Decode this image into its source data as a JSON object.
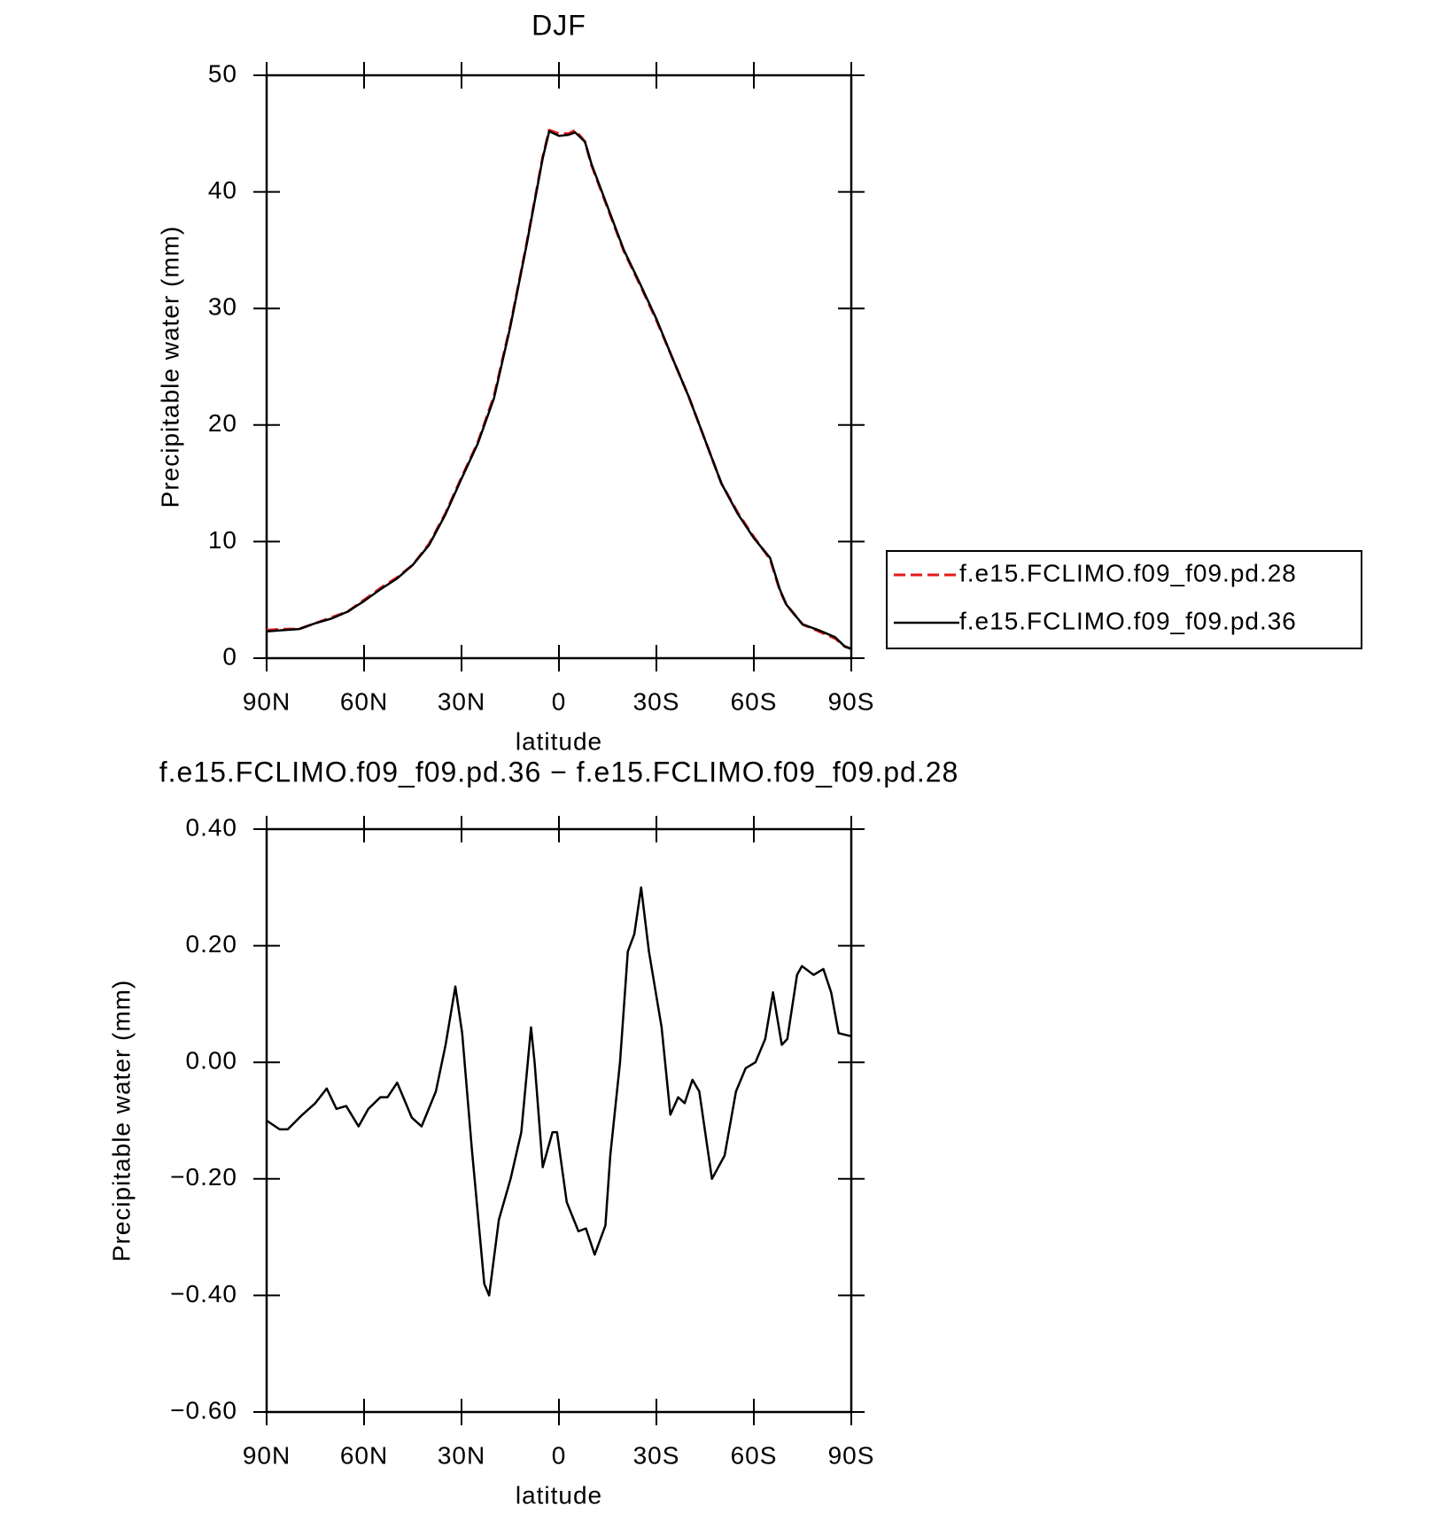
{
  "chart_data": [
    {
      "type": "line",
      "title": "DJF",
      "xlabel": "latitude",
      "ylabel": "Precipitable water (mm)",
      "x": [
        90,
        85,
        80,
        75,
        70,
        65,
        60,
        55,
        50,
        45,
        40,
        35,
        30,
        25,
        20,
        15,
        10,
        5,
        3,
        0,
        -3,
        -5,
        -8,
        -10,
        -15,
        -20,
        -25,
        -30,
        -35,
        -40,
        -45,
        -50,
        -55,
        -60,
        -65,
        -68,
        -70,
        -75,
        -80,
        -85,
        -88,
        -90
      ],
      "series": [
        {
          "name": "f.e15.FCLIMO.f09_f09.pd.28",
          "color": "#e41a1c",
          "dash": true,
          "values": [
            2.4,
            2.5,
            2.5,
            3.0,
            3.5,
            4.0,
            5.0,
            6.0,
            6.9,
            8.0,
            9.8,
            12.4,
            15.5,
            18.5,
            22.5,
            28.5,
            35.5,
            43.0,
            45.3,
            45.0,
            45.0,
            45.3,
            44.3,
            42.3,
            38.6,
            34.9,
            32.0,
            29.0,
            25.7,
            22.4,
            18.7,
            15.0,
            12.5,
            10.4,
            8.5,
            5.8,
            4.6,
            2.9,
            2.3,
            1.7,
            1.0,
            0.8
          ]
        },
        {
          "name": "f.e15.FCLIMO.f09_f09.pd.36",
          "color": "#000000",
          "dash": false,
          "values": [
            2.3,
            2.4,
            2.5,
            3.0,
            3.4,
            4.0,
            4.9,
            5.9,
            6.8,
            8.0,
            9.7,
            12.3,
            15.4,
            18.4,
            22.3,
            28.4,
            35.4,
            42.9,
            45.2,
            44.8,
            44.9,
            45.1,
            44.3,
            42.4,
            38.7,
            35.0,
            32.1,
            29.1,
            25.7,
            22.4,
            18.7,
            15.0,
            12.4,
            10.3,
            8.6,
            5.9,
            4.6,
            2.9,
            2.4,
            1.8,
            1.0,
            0.8
          ]
        }
      ],
      "xlim": [
        90,
        -90
      ],
      "xticks": [
        {
          "value": 90,
          "label": "90N"
        },
        {
          "value": 60,
          "label": "60N"
        },
        {
          "value": 30,
          "label": "30N"
        },
        0,
        {
          "value": -30,
          "label": "30S"
        },
        {
          "value": -60,
          "label": "60S"
        },
        {
          "value": -90,
          "label": "90S"
        }
      ],
      "ylim": [
        0,
        50
      ],
      "yticks": [
        0,
        10,
        20,
        30,
        40,
        50
      ],
      "legend": "right"
    },
    {
      "type": "line",
      "title": "f.e15.FCLIMO.f09_f09.pd.36 − f.e15.FCLIMO.f09_f09.pd.28",
      "xlabel": "latitude",
      "ylabel": "Precipitable water (mm)",
      "x": [
        90,
        86,
        83.5,
        79,
        75,
        71.5,
        68.5,
        65.5,
        61.7,
        58.7,
        55,
        52.8,
        49.8,
        45.3,
        42.3,
        37.9,
        34.9,
        31.9,
        29.8,
        26.8,
        23,
        21.5,
        18.5,
        14.9,
        11.6,
        8.6,
        7.5,
        5,
        2,
        0.6,
        -2.4,
        -6,
        -8.3,
        -11,
        -14.3,
        -15.8,
        -18.8,
        -21.2,
        -23.2,
        -25.3,
        -27.7,
        -31.6,
        -34.3,
        -36.7,
        -38.7,
        -41.1,
        -43.2,
        -47.1,
        -51,
        -54.5,
        -57.5,
        -60.5,
        -63.5,
        -65.9,
        -68.6,
        -70.3,
        -73.3,
        -74.8,
        -78.4,
        -81.4,
        -83.8,
        -86.1,
        -89.7
      ],
      "values": [
        -0.1,
        -0.115,
        -0.115,
        -0.09,
        -0.07,
        -0.045,
        -0.08,
        -0.075,
        -0.11,
        -0.08,
        -0.06,
        -0.06,
        -0.035,
        -0.095,
        -0.11,
        -0.05,
        0.03,
        0.13,
        0.05,
        -0.15,
        -0.38,
        -0.4,
        -0.27,
        -0.2,
        -0.12,
        0.06,
        0.0,
        -0.18,
        -0.12,
        -0.12,
        -0.24,
        -0.29,
        -0.285,
        -0.33,
        -0.28,
        -0.16,
        0.0,
        0.19,
        0.22,
        0.3,
        0.19,
        0.06,
        -0.09,
        -0.06,
        -0.07,
        -0.03,
        -0.05,
        -0.2,
        -0.16,
        -0.05,
        -0.01,
        0.0,
        0.04,
        0.12,
        0.03,
        0.04,
        0.15,
        0.165,
        0.15,
        0.16,
        0.12,
        0.05,
        0.045
      ],
      "color": "#000000",
      "xlim": [
        90,
        -90
      ],
      "xticks": [
        {
          "value": 90,
          "label": "90N"
        },
        {
          "value": 60,
          "label": "60N"
        },
        {
          "value": 30,
          "label": "30N"
        },
        0,
        {
          "value": -30,
          "label": "30S"
        },
        {
          "value": -60,
          "label": "60S"
        },
        {
          "value": -90,
          "label": "90S"
        }
      ],
      "ylim": [
        -0.6,
        0.4
      ],
      "yticks": [
        {
          "value": -0.6,
          "label": "−0.60"
        },
        {
          "value": -0.4,
          "label": "−0.40"
        },
        {
          "value": -0.2,
          "label": "−0.20"
        },
        {
          "value": 0,
          "label": "0.00"
        },
        {
          "value": 0.2,
          "label": "0.20"
        },
        {
          "value": 0.4,
          "label": "0.40"
        }
      ]
    }
  ]
}
